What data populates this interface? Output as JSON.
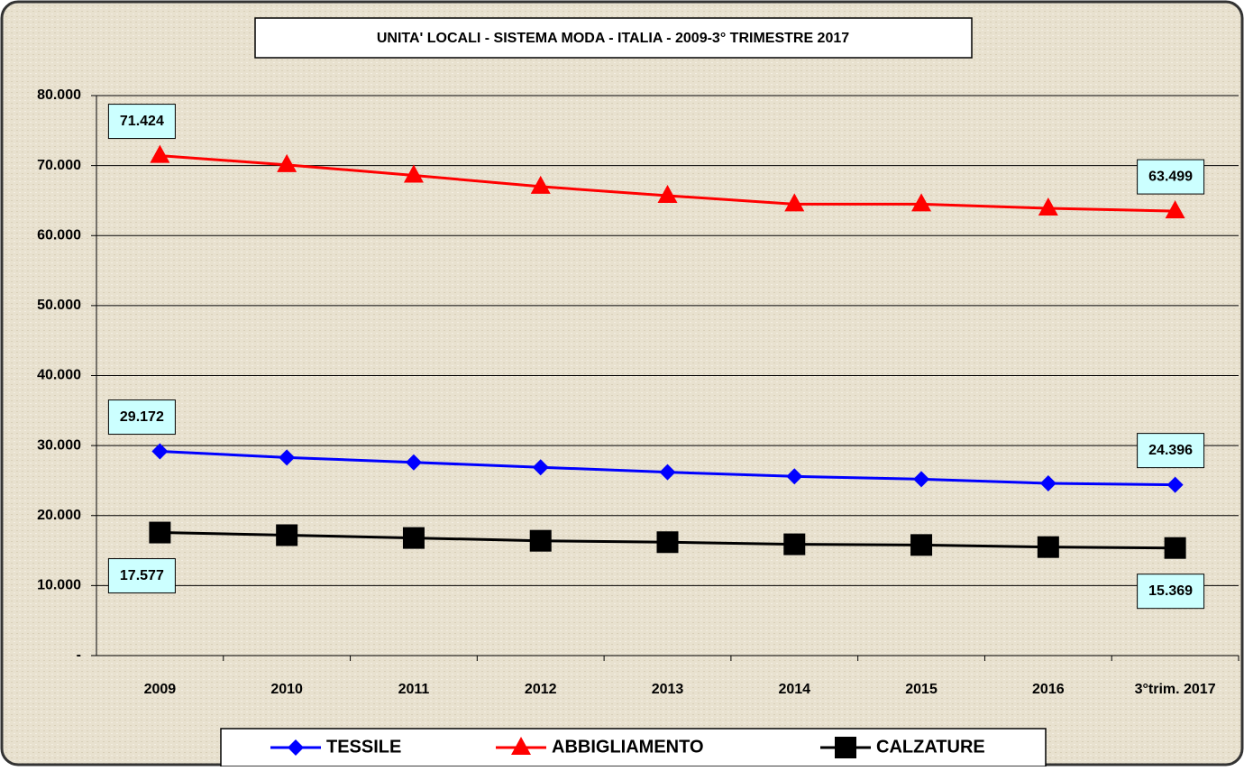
{
  "chart_data": {
    "type": "line",
    "title": "UNITA' LOCALI - SISTEMA MODA - ITALIA - 2009-3° TRIMESTRE 2017",
    "categories": [
      "2009",
      "2010",
      "2011",
      "2012",
      "2013",
      "2014",
      "2015",
      "2016",
      "3°trim. 2017"
    ],
    "series": [
      {
        "name": "TESSILE",
        "color": "#0000ff",
        "marker": "diamond",
        "values": [
          29172,
          28300,
          27600,
          26900,
          26200,
          25600,
          25200,
          24600,
          24396
        ],
        "value_labels": [
          "29.172",
          null,
          null,
          null,
          null,
          null,
          null,
          null,
          "24.396"
        ]
      },
      {
        "name": "ABBIGLIAMENTO",
        "color": "#ff0000",
        "marker": "triangle",
        "values": [
          71424,
          70100,
          68600,
          67000,
          65700,
          64500,
          64500,
          63900,
          63499
        ],
        "value_labels": [
          "71.424",
          null,
          null,
          null,
          null,
          null,
          null,
          null,
          "63.499"
        ]
      },
      {
        "name": "CALZATURE",
        "color": "#000000",
        "marker": "square",
        "values": [
          17577,
          17200,
          16800,
          16400,
          16200,
          15900,
          15800,
          15500,
          15369
        ],
        "value_labels": [
          "17.577",
          null,
          null,
          null,
          null,
          null,
          null,
          null,
          "15.369"
        ]
      }
    ],
    "ylim": [
      0,
      80000
    ],
    "yticks": [
      {
        "value": 0,
        "label": "-"
      },
      {
        "value": 10000,
        "label": "10.000"
      },
      {
        "value": 20000,
        "label": "20.000"
      },
      {
        "value": 30000,
        "label": "30.000"
      },
      {
        "value": 40000,
        "label": "40.000"
      },
      {
        "value": 50000,
        "label": "50.000"
      },
      {
        "value": 60000,
        "label": "60.000"
      },
      {
        "value": 70000,
        "label": "70.000"
      },
      {
        "value": 80000,
        "label": "80.000"
      }
    ],
    "grid": true,
    "legend": "bottom"
  }
}
